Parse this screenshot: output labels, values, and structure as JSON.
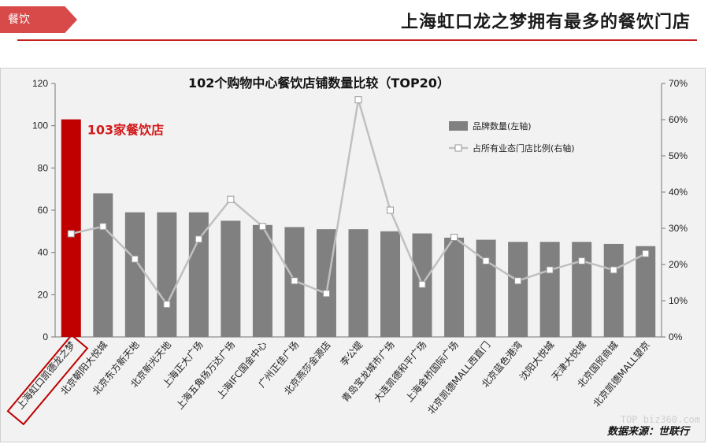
{
  "header": {
    "tag": "餐饮",
    "title": "上海虹口龙之梦拥有最多的餐饮门店"
  },
  "colors": {
    "accent": "#c00000",
    "bar": "#808080",
    "line": "#c0c0c0",
    "tag_bg": "#d84a4a"
  },
  "chart_data": {
    "type": "bar",
    "title": "102个购物中心餐饮店铺数量比较（TOP20）",
    "categories": [
      "上海虹口凯德龙之梦",
      "北京朝阳大悦城",
      "北京东方新天地",
      "北京新光天地",
      "上海正大广场",
      "上海五角场万达广场",
      "上海IFC国金中心",
      "广州正佳广场",
      "北京燕莎金源店",
      "李公堤",
      "青岛宝龙城市广场",
      "大连凯德和平广场",
      "上海金桥国际广场",
      "北京凯德MALL西直门",
      "北京蓝色港湾",
      "沈阳大悦城",
      "天津大悦城",
      "北京国贸商城",
      "北京凯德MALL望京"
    ],
    "series": [
      {
        "name": "品牌数量(左轴)",
        "axis": "left",
        "type": "bar",
        "values": [
          103,
          68,
          59,
          59,
          59,
          55,
          53,
          52,
          51,
          51,
          50,
          49,
          47,
          46,
          45,
          45,
          45,
          44,
          43
        ]
      },
      {
        "name": "占所有业态门店比例(右轴)",
        "axis": "right",
        "type": "line",
        "values": [
          28.5,
          30.5,
          21.5,
          9,
          27,
          38,
          30.5,
          15.5,
          12,
          65.5,
          35,
          14.5,
          27.5,
          21,
          15.5,
          18.5,
          21,
          18.5,
          23
        ]
      }
    ],
    "ylim_left": [
      0,
      120
    ],
    "yticks_left": [
      "0",
      "20",
      "40",
      "60",
      "80",
      "100",
      "120"
    ],
    "ylim_right": [
      0,
      70
    ],
    "yticks_right": [
      "0%",
      "10%",
      "20%",
      "30%",
      "40%",
      "50%",
      "60%",
      "70%"
    ],
    "annotation": "103家餐饮店",
    "legend_position": "top-right",
    "grid": false,
    "source": "数据来源：世联行"
  },
  "watermark": "TOP biz360.com"
}
